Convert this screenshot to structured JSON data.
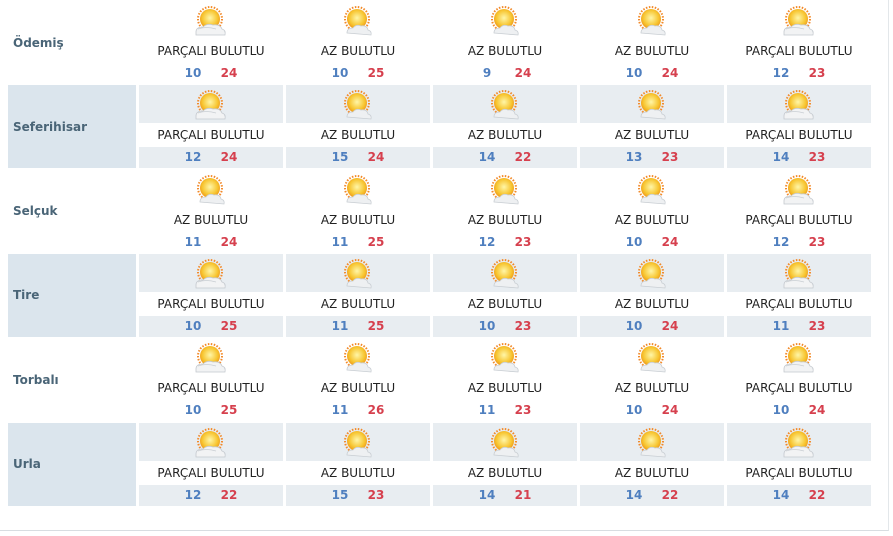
{
  "colors": {
    "low": "#4f7fbf",
    "high": "#d6404e",
    "city": "#4a6577",
    "shade": "#e8edf1"
  },
  "rows": [
    {
      "city": "Ödemiş",
      "days": [
        {
          "icon": "partly-cloudy-icon",
          "desc": "PARÇALI BULUTLU",
          "low": "10",
          "high": "24"
        },
        {
          "icon": "mostly-sunny-icon",
          "desc": "AZ BULUTLU",
          "low": "10",
          "high": "25"
        },
        {
          "icon": "mostly-sunny-icon",
          "desc": "AZ BULUTLU",
          "low": "9",
          "high": "24"
        },
        {
          "icon": "mostly-sunny-icon",
          "desc": "AZ BULUTLU",
          "low": "10",
          "high": "24"
        },
        {
          "icon": "partly-cloudy-icon",
          "desc": "PARÇALI BULUTLU",
          "low": "12",
          "high": "23"
        }
      ]
    },
    {
      "city": "Seferihisar",
      "days": [
        {
          "icon": "partly-cloudy-icon",
          "desc": "PARÇALI BULUTLU",
          "low": "12",
          "high": "24"
        },
        {
          "icon": "mostly-sunny-icon",
          "desc": "AZ BULUTLU",
          "low": "15",
          "high": "24"
        },
        {
          "icon": "mostly-sunny-icon",
          "desc": "AZ BULUTLU",
          "low": "14",
          "high": "22"
        },
        {
          "icon": "mostly-sunny-icon",
          "desc": "AZ BULUTLU",
          "low": "13",
          "high": "23"
        },
        {
          "icon": "partly-cloudy-icon",
          "desc": "PARÇALI BULUTLU",
          "low": "14",
          "high": "23"
        }
      ]
    },
    {
      "city": "Selçuk",
      "days": [
        {
          "icon": "mostly-sunny-icon",
          "desc": "AZ BULUTLU",
          "low": "11",
          "high": "24"
        },
        {
          "icon": "mostly-sunny-icon",
          "desc": "AZ BULUTLU",
          "low": "11",
          "high": "25"
        },
        {
          "icon": "mostly-sunny-icon",
          "desc": "AZ BULUTLU",
          "low": "12",
          "high": "23"
        },
        {
          "icon": "mostly-sunny-icon",
          "desc": "AZ BULUTLU",
          "low": "10",
          "high": "24"
        },
        {
          "icon": "partly-cloudy-icon",
          "desc": "PARÇALI BULUTLU",
          "low": "12",
          "high": "23"
        }
      ]
    },
    {
      "city": "Tire",
      "days": [
        {
          "icon": "partly-cloudy-icon",
          "desc": "PARÇALI BULUTLU",
          "low": "10",
          "high": "25"
        },
        {
          "icon": "mostly-sunny-icon",
          "desc": "AZ BULUTLU",
          "low": "11",
          "high": "25"
        },
        {
          "icon": "mostly-sunny-icon",
          "desc": "AZ BULUTLU",
          "low": "10",
          "high": "23"
        },
        {
          "icon": "mostly-sunny-icon",
          "desc": "AZ BULUTLU",
          "low": "10",
          "high": "24"
        },
        {
          "icon": "partly-cloudy-icon",
          "desc": "PARÇALI BULUTLU",
          "low": "11",
          "high": "23"
        }
      ]
    },
    {
      "city": "Torbalı",
      "days": [
        {
          "icon": "partly-cloudy-icon",
          "desc": "PARÇALI BULUTLU",
          "low": "10",
          "high": "25"
        },
        {
          "icon": "mostly-sunny-icon",
          "desc": "AZ BULUTLU",
          "low": "11",
          "high": "26"
        },
        {
          "icon": "mostly-sunny-icon",
          "desc": "AZ BULUTLU",
          "low": "11",
          "high": "23"
        },
        {
          "icon": "mostly-sunny-icon",
          "desc": "AZ BULUTLU",
          "low": "10",
          "high": "24"
        },
        {
          "icon": "partly-cloudy-icon",
          "desc": "PARÇALI BULUTLU",
          "low": "10",
          "high": "24"
        }
      ]
    },
    {
      "city": "Urla",
      "days": [
        {
          "icon": "partly-cloudy-icon",
          "desc": "PARÇALI BULUTLU",
          "low": "12",
          "high": "22"
        },
        {
          "icon": "mostly-sunny-icon",
          "desc": "AZ BULUTLU",
          "low": "15",
          "high": "23"
        },
        {
          "icon": "mostly-sunny-icon",
          "desc": "AZ BULUTLU",
          "low": "14",
          "high": "21"
        },
        {
          "icon": "mostly-sunny-icon",
          "desc": "AZ BULUTLU",
          "low": "14",
          "high": "22"
        },
        {
          "icon": "partly-cloudy-icon",
          "desc": "PARÇALI BULUTLU",
          "low": "14",
          "high": "22"
        }
      ]
    }
  ]
}
